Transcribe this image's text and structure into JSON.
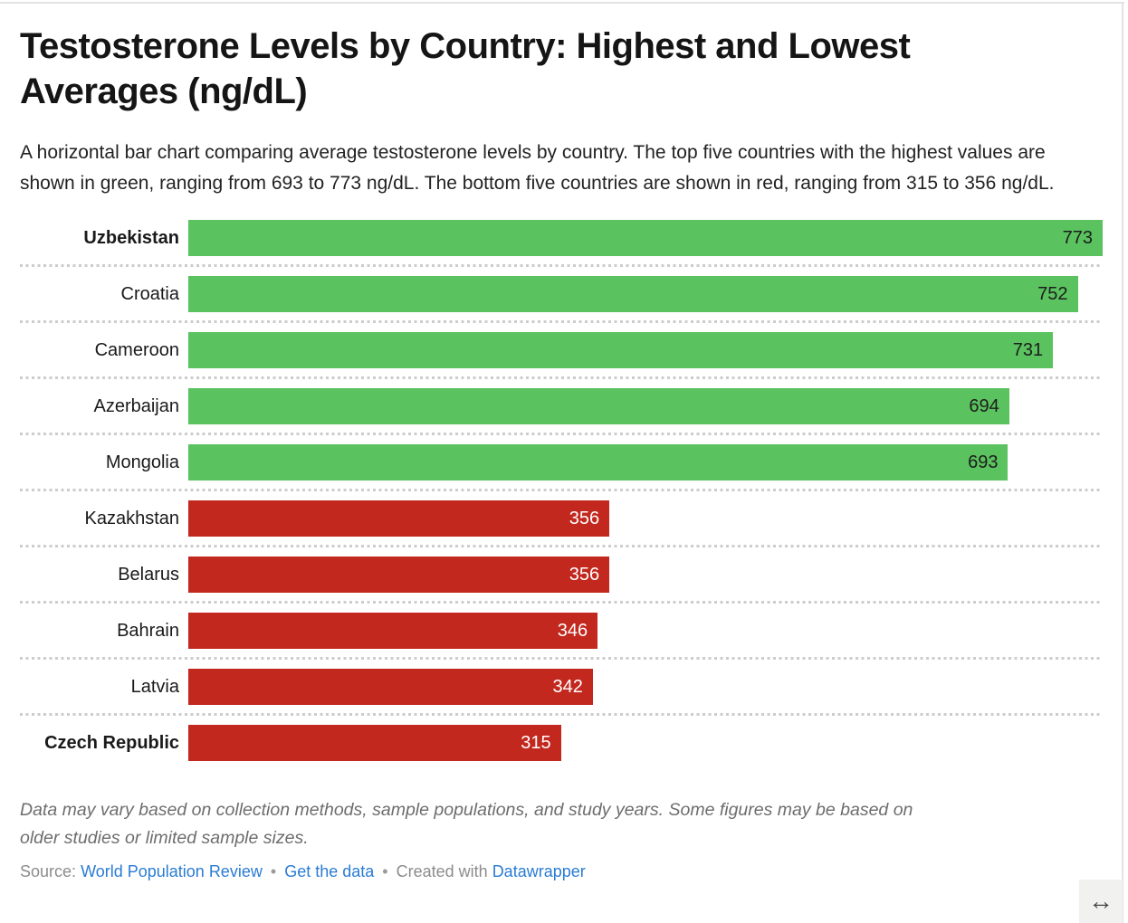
{
  "header": {
    "title": "Testosterone Levels by Country: Highest and Lowest Averages (ng/dL)",
    "description": "A horizontal bar chart comparing average testosterone levels by country. The top five countries with the highest values are shown in green, ranging from 693 to 773 ng/dL. The bottom five countries are shown in red, ranging from 315 to 356 ng/dL."
  },
  "chart_data": {
    "type": "bar",
    "orientation": "horizontal",
    "value_unit": "ng/dL",
    "axis_max": 773,
    "grid": "dotted-row-separators",
    "legend": "none",
    "categories": [
      "Uzbekistan",
      "Croatia",
      "Cameroon",
      "Azerbaijan",
      "Mongolia",
      "Kazakhstan",
      "Belarus",
      "Bahrain",
      "Latvia",
      "Czech Republic"
    ],
    "values": [
      773,
      752,
      731,
      694,
      693,
      356,
      356,
      346,
      342,
      315
    ],
    "rows": [
      {
        "label": "Uzbekistan",
        "value": 773,
        "group": "high",
        "bold": true
      },
      {
        "label": "Croatia",
        "value": 752,
        "group": "high",
        "bold": false
      },
      {
        "label": "Cameroon",
        "value": 731,
        "group": "high",
        "bold": false
      },
      {
        "label": "Azerbaijan",
        "value": 694,
        "group": "high",
        "bold": false
      },
      {
        "label": "Mongolia",
        "value": 693,
        "group": "high",
        "bold": false
      },
      {
        "label": "Kazakhstan",
        "value": 356,
        "group": "low",
        "bold": false
      },
      {
        "label": "Belarus",
        "value": 356,
        "group": "low",
        "bold": false
      },
      {
        "label": "Bahrain",
        "value": 346,
        "group": "low",
        "bold": false
      },
      {
        "label": "Latvia",
        "value": 342,
        "group": "low",
        "bold": false
      },
      {
        "label": "Czech Republic",
        "value": 315,
        "group": "low",
        "bold": true
      }
    ],
    "colors": {
      "high_bar": "#5ac25e",
      "low_bar": "#c2281e",
      "value_label_on_high": "#1d1d1d",
      "value_label_on_low": "#ffffff"
    }
  },
  "footer": {
    "footnote": "Data may vary based on collection methods, sample populations, and study years. Some figures may be based on older studies or limited sample sizes.",
    "source_prefix": "Source:",
    "source_link_label": "World Population Review",
    "separator": "•",
    "get_data_link_label": "Get the data",
    "created_with_text": "Created with",
    "tool_link_label": "Datawrapper"
  },
  "controls": {
    "expand_icon": "↔"
  }
}
